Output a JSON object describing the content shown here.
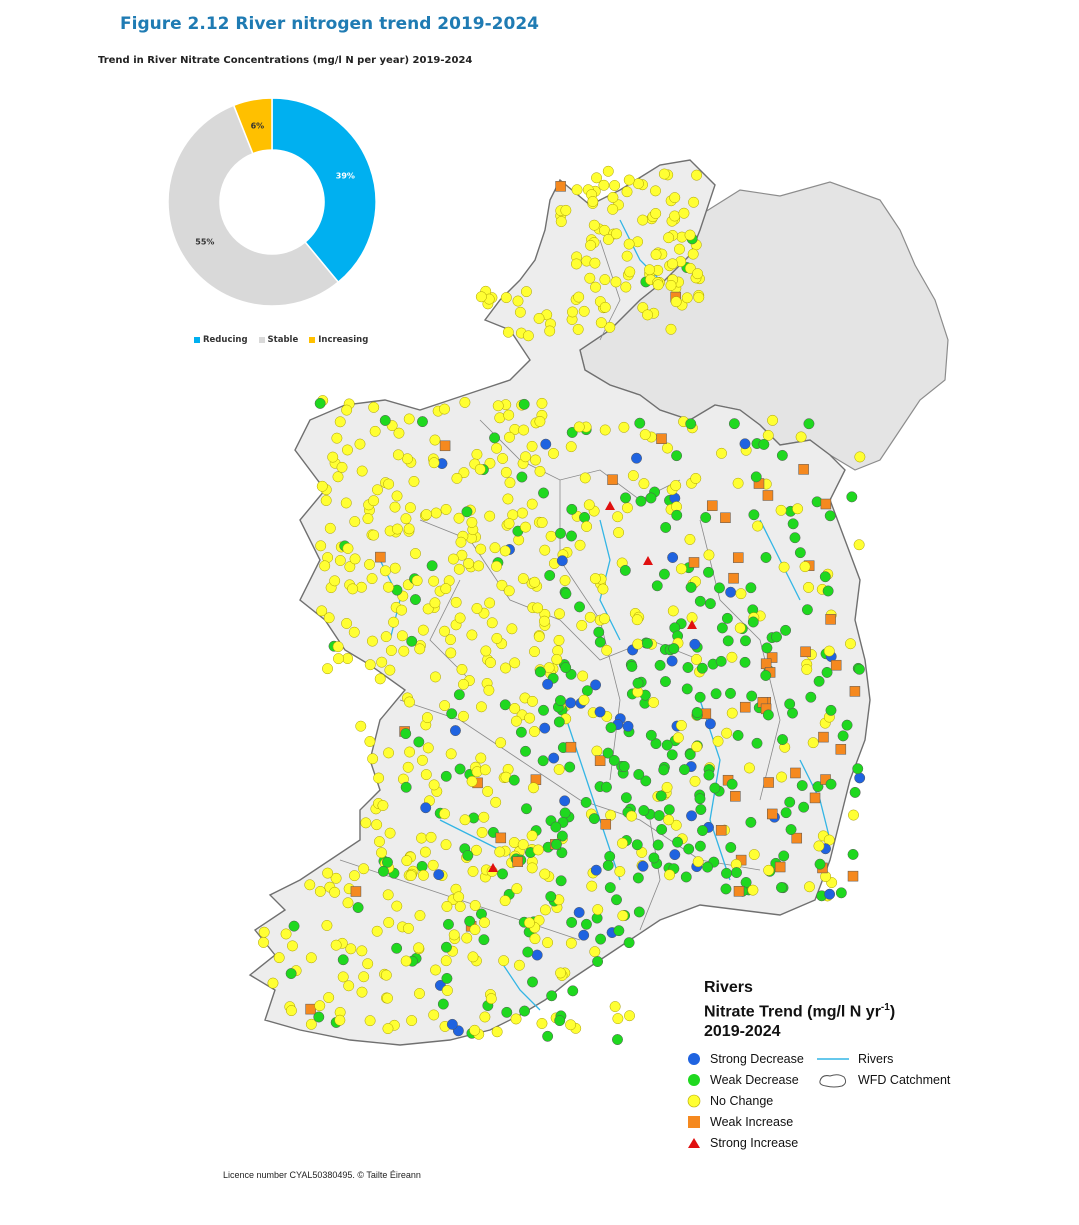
{
  "figure_title": "Figure 2.12 River nitrogen trend 2019-2024",
  "chart_title": "Trend in River Nitrate Concentrations (mg/l N per year) 2019-2024",
  "chart_data": {
    "type": "pie",
    "title": "Trend in River Nitrate Concentrations (mg/l N per year) 2019-2024",
    "categories": [
      "Reducing",
      "Stable",
      "Increasing"
    ],
    "values": [
      39,
      55,
      6
    ],
    "labels": [
      "39%",
      "55%",
      "6%"
    ],
    "colors": [
      "#00b0f0",
      "#d9d9d9",
      "#ffc000"
    ],
    "legend": "bottom"
  },
  "map_legend": {
    "title_line1": "Rivers",
    "title_line2_prefix": "Nitrate Trend (mg/l N yr",
    "title_line2_sup": "-1",
    "title_line2_suffix": ")",
    "title_line3": "2019-2024",
    "items": [
      {
        "label": "Strong Decrease",
        "symbol": "circle",
        "color": "#1f63e0"
      },
      {
        "label": "Weak Decrease",
        "symbol": "circle",
        "color": "#1fd81f"
      },
      {
        "label": "No Change",
        "symbol": "circle",
        "color": "#ffff33"
      },
      {
        "label": "Weak Increase",
        "symbol": "square",
        "color": "#f5891f"
      },
      {
        "label": "Strong Increase",
        "symbol": "triangle",
        "color": "#e01010"
      }
    ],
    "layers": [
      {
        "label": "Rivers",
        "symbol": "line",
        "color": "#33b5e5"
      },
      {
        "label": "WFD Catchment",
        "symbol": "outline",
        "color": "#555555"
      }
    ]
  },
  "licence": "Licence number CYAL50380495. © Tailte Éireann"
}
